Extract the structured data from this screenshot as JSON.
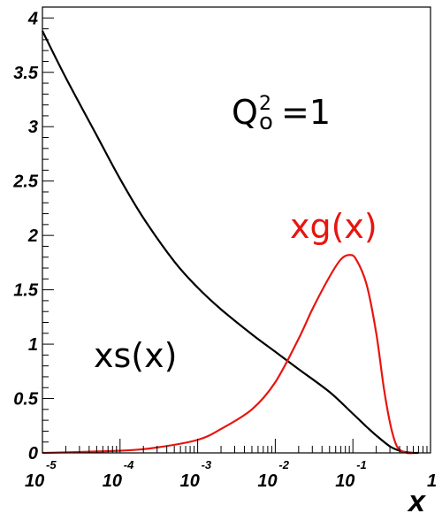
{
  "chart_data": {
    "type": "line",
    "xscale": "log",
    "xlim": [
      1e-05,
      1
    ],
    "ylim": [
      0,
      4.1
    ],
    "xlabel": "x",
    "ylabel": "",
    "grid": false,
    "y_tick_labels": [
      "0",
      "0.5",
      "1",
      "1.5",
      "2",
      "2.5",
      "3",
      "3.5",
      "4"
    ],
    "x_tick_labels": [
      {
        "base": "10",
        "exp": "-5"
      },
      {
        "base": "10",
        "exp": "-4"
      },
      {
        "base": "10",
        "exp": "-3"
      },
      {
        "base": "10",
        "exp": "-2"
      },
      {
        "base": "10",
        "exp": "-1"
      },
      {
        "base": "1",
        "exp": ""
      }
    ],
    "annotation": {
      "q": "Q",
      "sup": "2",
      "sub": "o",
      "rest": "=1"
    },
    "series": [
      {
        "name": "xs(x)",
        "color": "#000000",
        "x": [
          1e-05,
          2e-05,
          5e-05,
          0.0001,
          0.0002,
          0.0005,
          0.001,
          0.002,
          0.005,
          0.01,
          0.02,
          0.05,
          0.1,
          0.15,
          0.2,
          0.3,
          0.4,
          0.5,
          0.6,
          0.7
        ],
        "y": [
          3.88,
          3.45,
          2.92,
          2.52,
          2.16,
          1.76,
          1.52,
          1.32,
          1.09,
          0.93,
          0.77,
          0.56,
          0.36,
          0.24,
          0.16,
          0.06,
          0.02,
          0.005,
          0.0,
          0.0
        ]
      },
      {
        "name": "xg(x)",
        "color": "#e8150f",
        "x": [
          1e-05,
          0.0001,
          0.0003,
          0.001,
          0.002,
          0.005,
          0.01,
          0.02,
          0.03,
          0.05,
          0.07,
          0.09,
          0.11,
          0.15,
          0.2,
          0.25,
          0.3,
          0.35,
          0.4,
          0.5,
          0.6
        ],
        "y": [
          0.0,
          0.02,
          0.05,
          0.12,
          0.22,
          0.4,
          0.65,
          1.05,
          1.32,
          1.62,
          1.78,
          1.82,
          1.78,
          1.55,
          1.1,
          0.6,
          0.28,
          0.1,
          0.03,
          0.0,
          0.0
        ]
      }
    ]
  }
}
